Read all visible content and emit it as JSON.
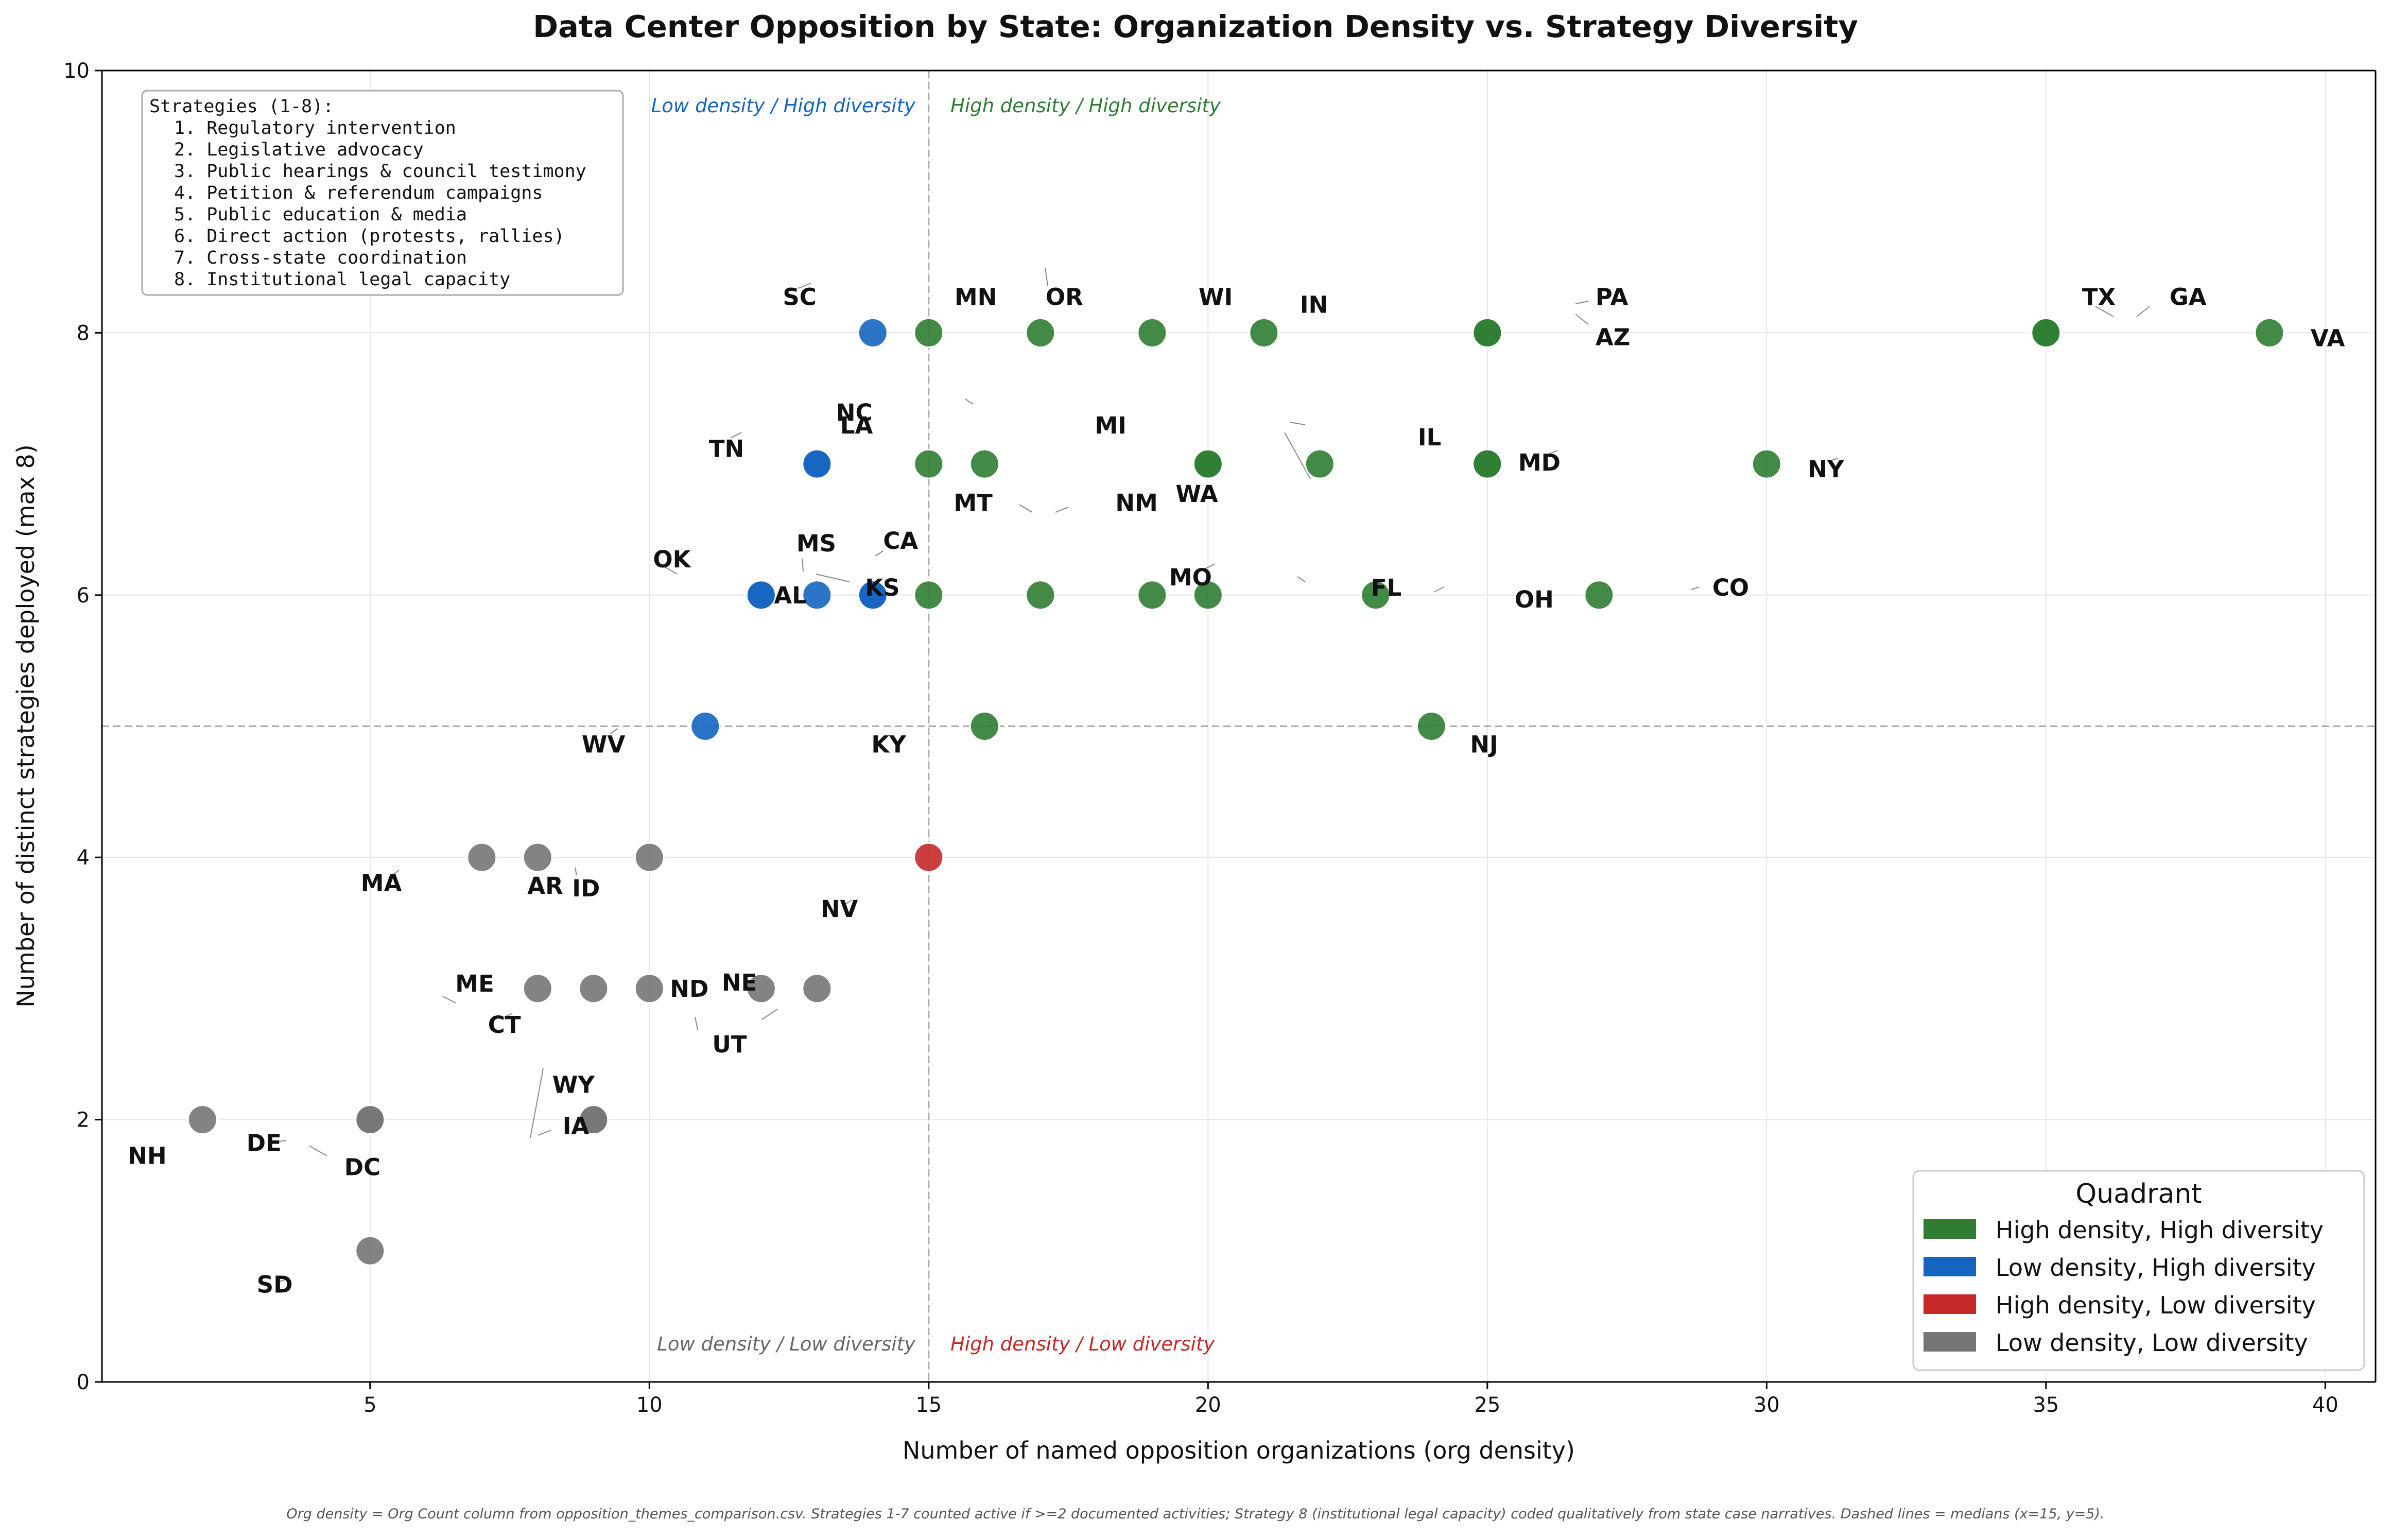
{
  "chart_data": {
    "type": "scatter",
    "title": "Data Center Opposition by State: Organization Density vs. Strategy Diversity",
    "xlabel": "Number of named opposition organizations (org density)",
    "ylabel": "Number of distinct strategies deployed (max 8)",
    "xlim": [
      0.2,
      40.9
    ],
    "ylim": [
      0,
      10
    ],
    "x_ticks": [
      5,
      10,
      15,
      20,
      25,
      30,
      35,
      40
    ],
    "y_ticks": [
      0,
      2,
      4,
      6,
      8,
      10
    ],
    "grid": true,
    "medians": {
      "x": 15,
      "y": 5
    },
    "quadrant_labels": {
      "top_left": "Low density / High diversity",
      "top_right": "High density / High diversity",
      "bottom_left": "Low density / Low diversity",
      "bottom_right": "High density / Low diversity"
    },
    "strategies_box": {
      "title": "Strategies (1-8):",
      "items": [
        "1. Regulatory intervention",
        "2. Legislative advocacy",
        "3. Public hearings & council testimony",
        "4. Petition & referendum campaigns",
        "5. Public education & media",
        "6. Direct action (protests, rallies)",
        "7. Cross-state coordination",
        "8. Institutional legal capacity"
      ]
    },
    "legend": {
      "title": "Quadrant",
      "position": "lower right",
      "entries": [
        {
          "key": "HH",
          "label": "High density, High diversity",
          "color": "#2e7d32"
        },
        {
          "key": "LH",
          "label": "Low density, High diversity",
          "color": "#1565c0"
        },
        {
          "key": "HL",
          "label": "High density, Low diversity",
          "color": "#c62828"
        },
        {
          "key": "LL",
          "label": "Low density, Low diversity",
          "color": "#757575"
        }
      ]
    },
    "points": [
      {
        "state": "SC",
        "x": 14,
        "y": 8,
        "q": "LH"
      },
      {
        "state": "MN",
        "x": 15,
        "y": 8,
        "q": "HH"
      },
      {
        "state": "OR",
        "x": 17,
        "y": 8,
        "q": "HH"
      },
      {
        "state": "WI",
        "x": 19,
        "y": 8,
        "q": "HH"
      },
      {
        "state": "IN",
        "x": 21,
        "y": 8,
        "q": "HH"
      },
      {
        "state": "PA",
        "x": 25,
        "y": 8,
        "q": "HH"
      },
      {
        "state": "AZ",
        "x": 25,
        "y": 8,
        "q": "HH"
      },
      {
        "state": "TX",
        "x": 35,
        "y": 8,
        "q": "HH"
      },
      {
        "state": "GA",
        "x": 35,
        "y": 8,
        "q": "HH"
      },
      {
        "state": "VA",
        "x": 39,
        "y": 8,
        "q": "HH"
      },
      {
        "state": "TN",
        "x": 13,
        "y": 7,
        "q": "LH"
      },
      {
        "state": "LA",
        "x": 13,
        "y": 7,
        "q": "LH"
      },
      {
        "state": "NC",
        "x": 15,
        "y": 7,
        "q": "HH"
      },
      {
        "state": "MT",
        "x": 16,
        "y": 7,
        "q": "HH"
      },
      {
        "state": "NM",
        "x": 20,
        "y": 7,
        "q": "HH"
      },
      {
        "state": "MI",
        "x": 20,
        "y": 7,
        "q": "HH"
      },
      {
        "state": "WA",
        "x": 22,
        "y": 7,
        "q": "HH"
      },
      {
        "state": "IL",
        "x": 25,
        "y": 7,
        "q": "HH"
      },
      {
        "state": "MD",
        "x": 25,
        "y": 7,
        "q": "HH"
      },
      {
        "state": "NY",
        "x": 30,
        "y": 7,
        "q": "HH"
      },
      {
        "state": "OK",
        "x": 12,
        "y": 6,
        "q": "LH"
      },
      {
        "state": "AL",
        "x": 12,
        "y": 6,
        "q": "LH"
      },
      {
        "state": "MS",
        "x": 13,
        "y": 6,
        "q": "LH"
      },
      {
        "state": "KS",
        "x": 14,
        "y": 6,
        "q": "LH"
      },
      {
        "state": "CA",
        "x": 14,
        "y": 6,
        "q": "LH"
      },
      {
        "state": "MO",
        "x": 17,
        "y": 6,
        "q": "HH"
      },
      {
        "state": "FL",
        "x": 19,
        "y": 6,
        "q": "HH"
      },
      {
        "state": "FL2",
        "x": 15,
        "y": 6,
        "q": "HH",
        "hidden_label": true
      },
      {
        "state": "MO2",
        "x": 20,
        "y": 6,
        "q": "HH",
        "hidden_label": true
      },
      {
        "state": "OH",
        "x": 23,
        "y": 6,
        "q": "HH"
      },
      {
        "state": "CO",
        "x": 27,
        "y": 6,
        "q": "HH"
      },
      {
        "state": "WV",
        "x": 11,
        "y": 5,
        "q": "LH"
      },
      {
        "state": "KY",
        "x": 16,
        "y": 5,
        "q": "HH"
      },
      {
        "state": "NJ",
        "x": 24,
        "y": 5,
        "q": "HH"
      },
      {
        "state": "MA",
        "x": 7,
        "y": 4,
        "q": "LL"
      },
      {
        "state": "AR",
        "x": 8,
        "y": 4,
        "q": "LL"
      },
      {
        "state": "ID",
        "x": 10,
        "y": 4,
        "q": "LL"
      },
      {
        "state": "NV",
        "x": 15,
        "y": 4,
        "q": "HL"
      },
      {
        "state": "ME",
        "x": 8,
        "y": 3,
        "q": "LL"
      },
      {
        "state": "CT",
        "x": 9,
        "y": 3,
        "q": "LL"
      },
      {
        "state": "ND",
        "x": 10,
        "y": 3,
        "q": "LL"
      },
      {
        "state": "UT",
        "x": 12,
        "y": 3,
        "q": "LL"
      },
      {
        "state": "NE",
        "x": 13,
        "y": 3,
        "q": "LL"
      },
      {
        "state": "WY",
        "x": 9,
        "y": 2,
        "q": "LL"
      },
      {
        "state": "IA",
        "x": 9,
        "y": 2,
        "q": "LL"
      },
      {
        "state": "NH",
        "x": 2,
        "y": 2,
        "q": "LL"
      },
      {
        "state": "DE",
        "x": 5,
        "y": 2,
        "q": "LL"
      },
      {
        "state": "DC",
        "x": 5,
        "y": 2,
        "q": "LL"
      },
      {
        "state": "SD",
        "x": 5,
        "y": 1,
        "q": "LL"
      }
    ],
    "footnote": "Org density = Org Count column from opposition_themes_comparison.csv. Strategies 1-7 counted active if >=2 documented activities; Strategy 8 (institutional legal capacity) coded qualitatively from state case narratives. Dashed lines = medians (x=15, y=5)."
  }
}
